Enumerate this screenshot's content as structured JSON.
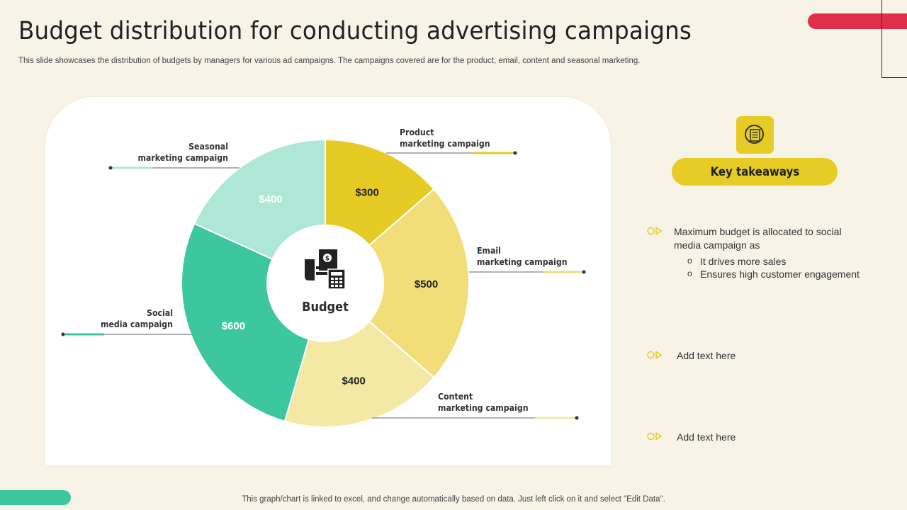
{
  "header": {
    "title": "Budget distribution for conducting advertising campaigns",
    "subtitle": "This slide showcases the distribution of budgets by managers for various ad campaigns. The campaigns covered are for the product, email, content and seasonal marketing."
  },
  "chart_data": {
    "type": "pie",
    "variant": "doughnut",
    "center_label": "Budget",
    "categories": [
      "Product marketing campaign",
      "Email marketing campaign",
      "Content marketing campaign",
      "Social media campaign",
      "Seasonal marketing campaign"
    ],
    "values": [
      300,
      500,
      400,
      600,
      400
    ],
    "data_labels": [
      "$300",
      "$500",
      "$400",
      "$600",
      "$400"
    ],
    "colors": [
      "#e7cb25",
      "#f1de78",
      "#f4e8a5",
      "#3cc79e",
      "#afe7d6"
    ],
    "annotations": [
      {
        "line1": "Product",
        "line2": "marketing campaign"
      },
      {
        "line1": "Email",
        "line2": "marketing campaign"
      },
      {
        "line1": "Content",
        "line2": "marketing campaign"
      },
      {
        "line1": "Social",
        "line2": "media campaign"
      },
      {
        "line1": "Seasonal",
        "line2": "marketing campaign"
      }
    ]
  },
  "takeaways": {
    "title": "Key takeaways",
    "icon": "notepad-icon",
    "items": [
      {
        "text": "Maximum budget is allocated to social media campaign as",
        "sub": [
          "It drives more sales",
          "Ensures high customer engagement"
        ]
      },
      {
        "text": "Add text here"
      },
      {
        "text": "Add text here"
      }
    ]
  },
  "footer": {
    "text": "This graph/chart is linked to excel,  and change automatically based on data. Just left click on it and select \"Edit Data\"."
  },
  "colors": {
    "background": "#f7f3e7",
    "accent_red": "#e0304a",
    "accent_green": "#3cc79e",
    "accent_yellow": "#e7cc25"
  }
}
